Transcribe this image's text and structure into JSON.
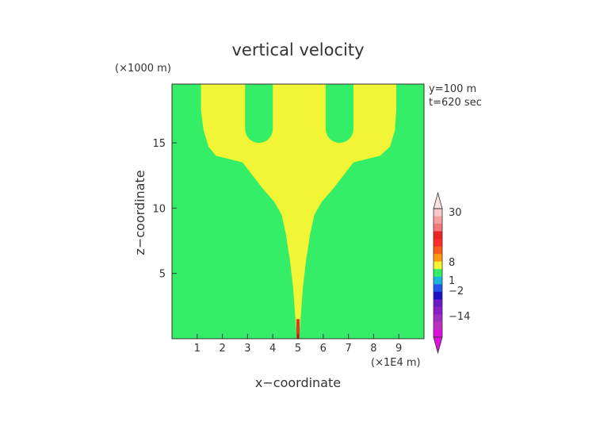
{
  "chart_data": {
    "type": "heatmap",
    "title": "vertical velocity",
    "xlabel": "x−coordinate",
    "ylabel": "z−coordinate",
    "x_unit": "(×1E4 m)",
    "y_unit": "(×1000 m)",
    "annotations": [
      "y=100 m",
      "t=620 sec"
    ],
    "xlim": [
      0,
      10
    ],
    "ylim": [
      0,
      19.5
    ],
    "x_ticks": [
      1,
      2,
      3,
      4,
      5,
      6,
      7,
      8,
      9
    ],
    "y_ticks": [
      5,
      10,
      15
    ],
    "background_value_color": "#33ee66",
    "plume_color": "#f2f536",
    "core_color": "#e03a1a",
    "plume_boundary": [
      {
        "z": 0.0,
        "xl": 4.96,
        "xr": 5.04
      },
      {
        "z": 2.0,
        "xl": 4.88,
        "xr": 5.12
      },
      {
        "z": 4.0,
        "xl": 4.8,
        "xr": 5.2
      },
      {
        "z": 6.0,
        "xl": 4.68,
        "xr": 5.32
      },
      {
        "z": 8.0,
        "xl": 4.52,
        "xr": 5.48
      },
      {
        "z": 9.5,
        "xl": 4.35,
        "xr": 5.65
      },
      {
        "z": 10.5,
        "xl": 4.05,
        "xr": 5.95
      },
      {
        "z": 11.5,
        "xl": 3.6,
        "xr": 6.4
      },
      {
        "z": 12.5,
        "xl": 3.2,
        "xr": 6.8
      },
      {
        "z": 13.5,
        "xl": 2.8,
        "xr": 7.2
      },
      {
        "z": 13.8,
        "xl": 2.2,
        "xr": 7.8
      },
      {
        "z": 14.0,
        "xl": 1.75,
        "xr": 8.25
      },
      {
        "z": 14.7,
        "xl": 1.45,
        "xr": 8.65
      },
      {
        "z": 16.0,
        "xl": 1.25,
        "xr": 8.85
      },
      {
        "z": 17.5,
        "xl": 1.15,
        "xr": 8.9
      },
      {
        "z": 19.5,
        "xl": 1.15,
        "xr": 8.9
      }
    ],
    "holes": [
      {
        "x_left": 2.9,
        "x_right": 4.0,
        "z_bottom": 15.0,
        "z_top": 19.5
      },
      {
        "x_left": 6.1,
        "x_right": 7.2,
        "z_bottom": 15.0,
        "z_top": 19.5
      }
    ],
    "colorbar": {
      "labels": [
        "30",
        "8",
        "1",
        "−2",
        "−14"
      ],
      "label_values": [
        30,
        8,
        1,
        -2,
        -14
      ],
      "bands": [
        {
          "value": 30,
          "color": "#f8c8c8"
        },
        {
          "value": 20,
          "color": "#f2a0a0"
        },
        {
          "value": 14,
          "color": "#f47878"
        },
        {
          "value": 10,
          "color": "#ee2222"
        },
        {
          "value": 8,
          "color": "#ff2a2a"
        },
        {
          "value": 6,
          "color": "#ff5a1a"
        },
        {
          "value": 4,
          "color": "#ff9a10"
        },
        {
          "value": 2,
          "color": "#f5f536"
        },
        {
          "value": 1,
          "color": "#33ee66"
        },
        {
          "value": 0,
          "color": "#1bb5e0"
        },
        {
          "value": -1,
          "color": "#2255ee"
        },
        {
          "value": -2,
          "color": "#1a10c8"
        },
        {
          "value": -4,
          "color": "#6a18c8"
        },
        {
          "value": -8,
          "color": "#8a1ec8"
        },
        {
          "value": -14,
          "color": "#a030c0"
        },
        {
          "value": -20,
          "color": "#c030c0"
        },
        {
          "value": -30,
          "color": "#dd10dd"
        }
      ]
    }
  }
}
